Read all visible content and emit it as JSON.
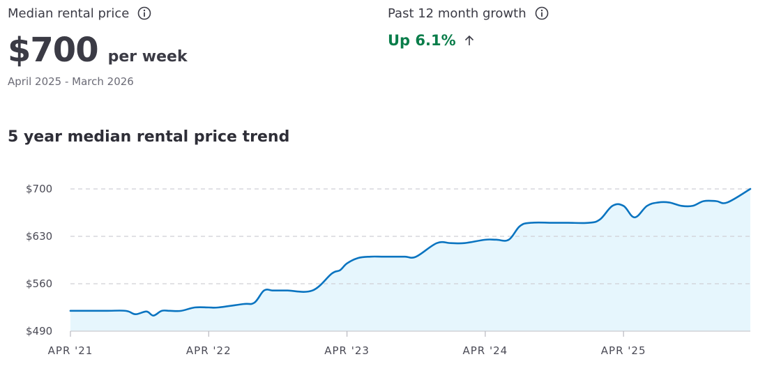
{
  "median": {
    "label": "Median rental price",
    "info_icon": "info-icon",
    "value": "$700",
    "unit": "per week",
    "period": "April 2025 - March 2026"
  },
  "growth": {
    "label": "Past 12 month growth",
    "info_icon": "info-icon",
    "value": "Up 6.1%",
    "arrow_icon": "arrow-up-icon",
    "color": "#0a7d4a"
  },
  "chart_title": "5 year median rental price trend",
  "chart_data": {
    "type": "area",
    "title": "5 year median rental price trend",
    "xlabel": "",
    "ylabel": "",
    "ylim": [
      490,
      700
    ],
    "y_ticks": [
      {
        "value": 700,
        "label": "$700"
      },
      {
        "value": 630,
        "label": "$630"
      },
      {
        "value": 560,
        "label": "$560"
      },
      {
        "value": 490,
        "label": "$490"
      }
    ],
    "x_ticks": [
      {
        "value": 2021.25,
        "label": "APR '21"
      },
      {
        "value": 2022.25,
        "label": "APR '22"
      },
      {
        "value": 2023.25,
        "label": "APR '23"
      },
      {
        "value": 2024.25,
        "label": "APR '24"
      },
      {
        "value": 2025.25,
        "label": "APR '25"
      }
    ],
    "xlim": [
      2021.25,
      2026.167
    ],
    "grid": "horizontal dashed",
    "line_color": "#0a74c0",
    "fill_color": "#e6f6fd",
    "series": [
      {
        "x": [
          2021.25,
          2021.5,
          2021.65,
          2021.72,
          2021.8,
          2021.85,
          2021.91,
          2021.97,
          2022.05,
          2022.15,
          2022.25,
          2022.32,
          2022.5,
          2022.58,
          2022.65,
          2022.71,
          2022.75,
          2022.82,
          2023.0,
          2023.14,
          2023.2,
          2023.25,
          2023.33,
          2023.42,
          2023.5,
          2023.58,
          2023.67,
          2023.75,
          2023.9,
          2024.0,
          2024.1,
          2024.25,
          2024.33,
          2024.42,
          2024.5,
          2024.58,
          2024.75,
          2024.85,
          2025.0,
          2025.08,
          2025.17,
          2025.25,
          2025.33,
          2025.42,
          2025.5,
          2025.58,
          2025.67,
          2025.75,
          2025.83,
          2025.92,
          2026.0,
          2026.167
        ],
        "y": [
          520,
          520,
          520,
          515,
          519,
          513,
          520,
          520,
          520,
          525,
          525,
          525,
          530,
          532,
          550,
          550,
          550,
          550,
          550,
          575,
          580,
          590,
          598,
          600,
          600,
          600,
          600,
          600,
          620,
          620,
          620,
          625,
          625,
          625,
          645,
          650,
          650,
          650,
          650,
          655,
          675,
          675,
          658,
          675,
          680,
          680,
          675,
          675,
          682,
          682,
          680,
          700
        ]
      }
    ]
  }
}
